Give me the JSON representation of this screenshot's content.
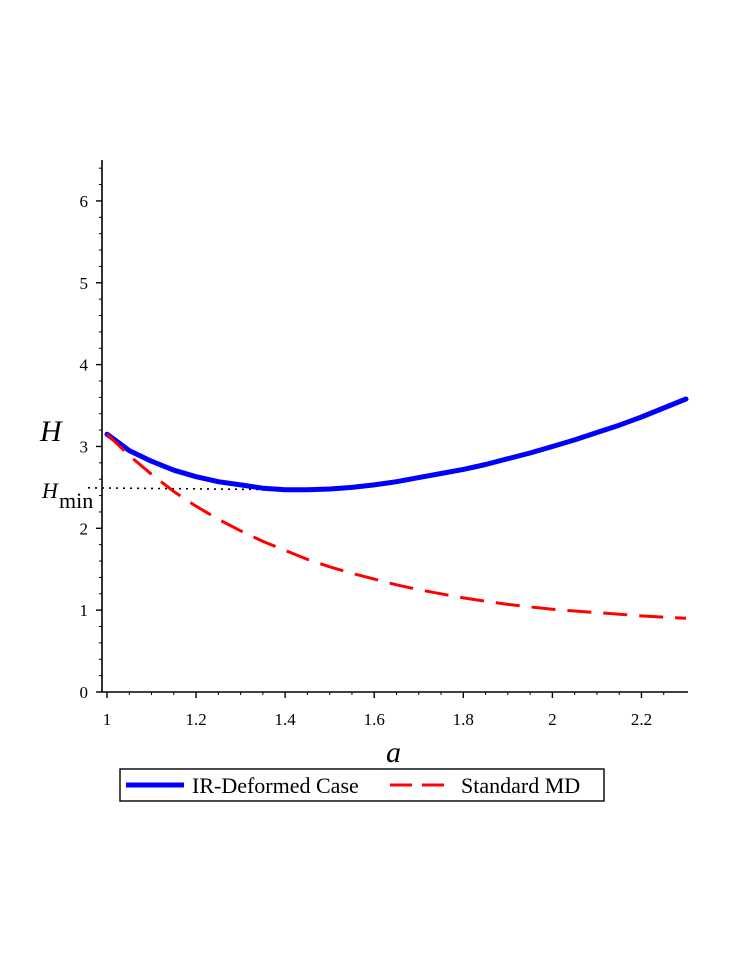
{
  "chart_data": {
    "type": "line",
    "title": "",
    "xlabel": "a",
    "ylabel": "H",
    "xlim": [
      1.0,
      2.3
    ],
    "ylim": [
      0,
      6.5
    ],
    "xticks": [
      1,
      1.2,
      1.4,
      1.6,
      1.8,
      2,
      2.2
    ],
    "xtick_labels": [
      "1",
      "1.2",
      "1.4",
      "1.6",
      "1.8",
      "2",
      "2.2"
    ],
    "yticks": [
      0,
      1,
      2,
      3,
      4,
      5,
      6
    ],
    "ytick_labels": [
      "0",
      "1",
      "2",
      "3",
      "4",
      "5",
      "6"
    ],
    "grid": false,
    "legend_position": "bottom",
    "annotation": {
      "label_main": "H",
      "label_sub": "min",
      "value": 2.47,
      "x_min": 1.44,
      "style": "dotted"
    },
    "series": [
      {
        "name": "IR-Deformed Case",
        "color": "#0000ff",
        "style": "solid",
        "x": [
          1.0,
          1.05,
          1.1,
          1.15,
          1.2,
          1.25,
          1.3,
          1.35,
          1.4,
          1.45,
          1.5,
          1.55,
          1.6,
          1.65,
          1.7,
          1.75,
          1.8,
          1.85,
          1.9,
          1.95,
          2.0,
          2.05,
          2.1,
          2.15,
          2.2,
          2.25,
          2.3
        ],
        "y": [
          3.15,
          2.95,
          2.82,
          2.71,
          2.63,
          2.57,
          2.53,
          2.49,
          2.47,
          2.47,
          2.48,
          2.5,
          2.53,
          2.57,
          2.62,
          2.67,
          2.72,
          2.78,
          2.85,
          2.92,
          3.0,
          3.08,
          3.17,
          3.26,
          3.36,
          3.47,
          3.58
        ]
      },
      {
        "name": "Standard MD",
        "color": "#ff0000",
        "style": "dashed",
        "x": [
          1.0,
          1.05,
          1.1,
          1.15,
          1.2,
          1.25,
          1.3,
          1.35,
          1.4,
          1.45,
          1.5,
          1.55,
          1.6,
          1.65,
          1.7,
          1.75,
          1.8,
          1.85,
          1.9,
          1.95,
          2.0,
          2.05,
          2.1,
          2.15,
          2.2,
          2.25,
          2.3
        ],
        "y": [
          3.15,
          2.89,
          2.66,
          2.45,
          2.27,
          2.11,
          1.97,
          1.84,
          1.73,
          1.62,
          1.53,
          1.45,
          1.38,
          1.31,
          1.25,
          1.2,
          1.15,
          1.11,
          1.07,
          1.04,
          1.01,
          0.99,
          0.97,
          0.95,
          0.93,
          0.915,
          0.9
        ]
      }
    ]
  }
}
